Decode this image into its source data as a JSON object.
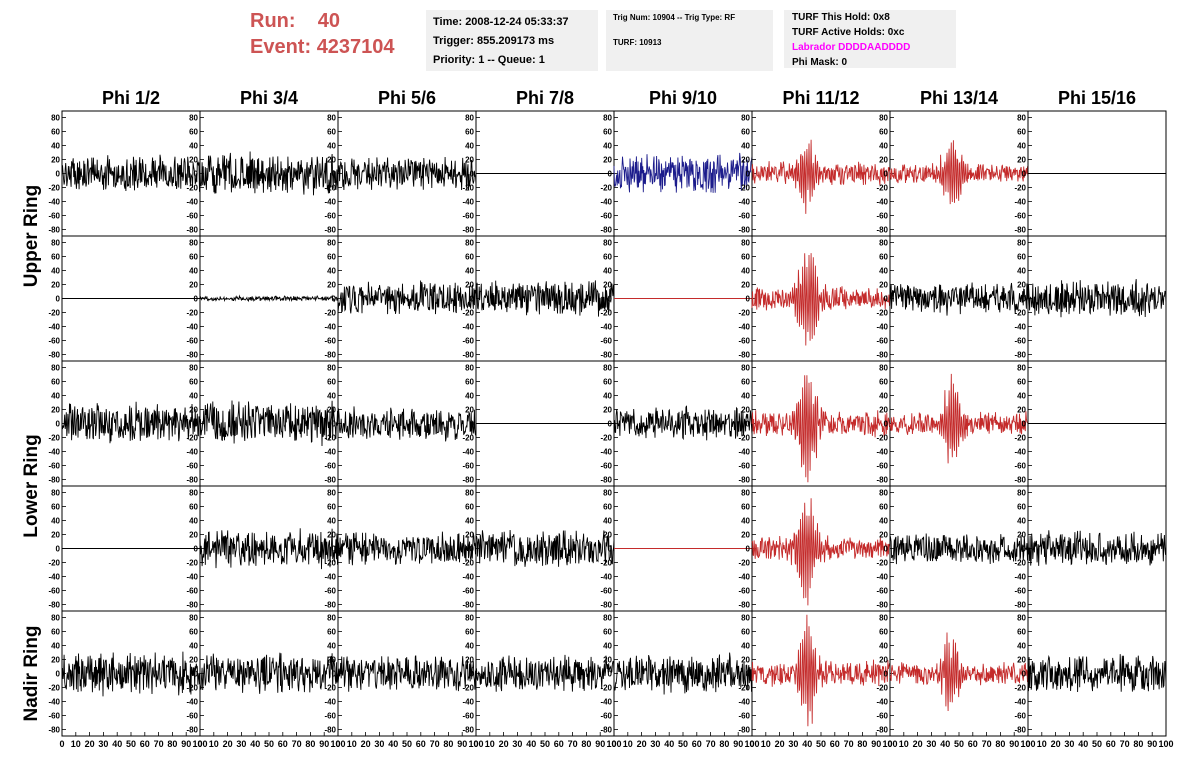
{
  "header": {
    "run_label": "Run:",
    "run_value": "40",
    "event_label": "Event:",
    "event_value": "4237104",
    "time": "Time: 2008-12-24 05:33:37",
    "trigger": "Trigger: 855.209173 ms",
    "priority_queue": "Priority: 1 -- Queue: 1",
    "trig_num_type": "Trig Num: 10904 -- Trig Type: RF",
    "turf": "TURF: 10913",
    "turf_this_hold": "TURF This Hold: 0x8",
    "turf_active_holds": "TURF Active Holds: 0xc",
    "labrador": "Labrador DDDDAADDDD",
    "phi_mask": "Phi Mask: 0"
  },
  "colors": {
    "run_text": "#cd5454",
    "info_box_bg": "#f0f0f0",
    "labrador_text": "#ff00ff",
    "trace_black": "#000000",
    "trace_blue": "#1c1c8c",
    "trace_red": "#c42b2b"
  },
  "chart_data": {
    "type": "line",
    "columns": [
      "Phi 1/2",
      "Phi 3/4",
      "Phi 5/6",
      "Phi 7/8",
      "Phi 9/10",
      "Phi 11/12",
      "Phi 13/14",
      "Phi 15/16"
    ],
    "row_groups": [
      "Upper Ring",
      "Lower Ring",
      "Nadir Ring"
    ],
    "rows_per_panel": 5,
    "xlim": [
      0,
      100
    ],
    "ylim": [
      -85,
      85
    ],
    "x_ticks": [
      "0",
      "10",
      "20",
      "30",
      "40",
      "50",
      "60",
      "70",
      "80",
      "90",
      "100"
    ],
    "y_ticks": [
      "80",
      "60",
      "40",
      "20",
      "0",
      "-20",
      "-40",
      "-60",
      "-80"
    ],
    "panels": [
      [
        {
          "color": "black",
          "amp": 22,
          "burst": 0,
          "pos": 0
        },
        {
          "color": "black",
          "amp": 25,
          "burst": 0,
          "pos": 0
        },
        {
          "color": "black",
          "amp": 20,
          "burst": 0,
          "pos": 0
        },
        {
          "color": "black",
          "amp": 0,
          "burst": 0,
          "pos": 0
        },
        {
          "color": "blue",
          "amp": 24,
          "burst": 0,
          "pos": 0
        },
        {
          "color": "red",
          "amp": 14,
          "burst": 45,
          "pos": 40
        },
        {
          "color": "red",
          "amp": 12,
          "burst": 50,
          "pos": 45
        },
        {
          "color": "black",
          "amp": 0,
          "burst": 0,
          "pos": 0
        }
      ],
      [
        {
          "color": "black",
          "amp": 0,
          "burst": 0,
          "pos": 0
        },
        {
          "color": "black",
          "amp": 3,
          "burst": 0,
          "pos": 0
        },
        {
          "color": "black",
          "amp": 20,
          "burst": 0,
          "pos": 0
        },
        {
          "color": "black",
          "amp": 22,
          "burst": 0,
          "pos": 0
        },
        {
          "color": "red",
          "amp": 0,
          "burst": 0,
          "pos": 0
        },
        {
          "color": "red",
          "amp": 14,
          "burst": 75,
          "pos": 40
        },
        {
          "color": "black",
          "amp": 20,
          "burst": 0,
          "pos": 0
        },
        {
          "color": "black",
          "amp": 22,
          "burst": 0,
          "pos": 0
        }
      ],
      [
        {
          "color": "black",
          "amp": 24,
          "burst": 0,
          "pos": 0
        },
        {
          "color": "black",
          "amp": 28,
          "burst": 0,
          "pos": 0
        },
        {
          "color": "black",
          "amp": 20,
          "burst": 0,
          "pos": 0
        },
        {
          "color": "black",
          "amp": 0,
          "burst": 0,
          "pos": 0
        },
        {
          "color": "black",
          "amp": 20,
          "burst": 0,
          "pos": 0
        },
        {
          "color": "red",
          "amp": 16,
          "burst": 82,
          "pos": 40
        },
        {
          "color": "red",
          "amp": 14,
          "burst": 60,
          "pos": 45
        },
        {
          "color": "black",
          "amp": 0,
          "burst": 0,
          "pos": 0
        }
      ],
      [
        {
          "color": "black",
          "amp": 0,
          "burst": 0,
          "pos": 0
        },
        {
          "color": "black",
          "amp": 24,
          "burst": 0,
          "pos": 0
        },
        {
          "color": "black",
          "amp": 20,
          "burst": 0,
          "pos": 0
        },
        {
          "color": "black",
          "amp": 22,
          "burst": 0,
          "pos": 0
        },
        {
          "color": "red",
          "amp": 0,
          "burst": 0,
          "pos": 0
        },
        {
          "color": "red",
          "amp": 14,
          "burst": 78,
          "pos": 40
        },
        {
          "color": "black",
          "amp": 18,
          "burst": 0,
          "pos": 0
        },
        {
          "color": "black",
          "amp": 22,
          "burst": 0,
          "pos": 0
        }
      ],
      [
        {
          "color": "black",
          "amp": 26,
          "burst": 0,
          "pos": 0
        },
        {
          "color": "black",
          "amp": 24,
          "burst": 0,
          "pos": 0
        },
        {
          "color": "black",
          "amp": 22,
          "burst": 0,
          "pos": 0
        },
        {
          "color": "black",
          "amp": 22,
          "burst": 0,
          "pos": 0
        },
        {
          "color": "black",
          "amp": 24,
          "burst": 0,
          "pos": 0
        },
        {
          "color": "red",
          "amp": 16,
          "burst": 70,
          "pos": 40
        },
        {
          "color": "red",
          "amp": 14,
          "burst": 52,
          "pos": 45
        },
        {
          "color": "black",
          "amp": 24,
          "burst": 0,
          "pos": 0
        }
      ]
    ]
  }
}
